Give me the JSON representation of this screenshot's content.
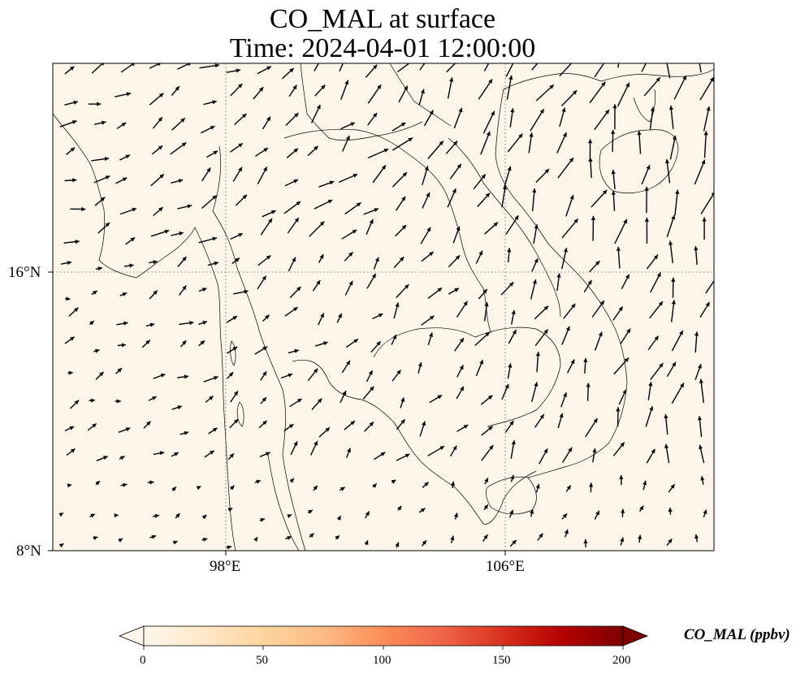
{
  "title": {
    "line1": "CO_MAL at surface",
    "line2": "Time: 2024-04-01 12:00:00"
  },
  "axes": {
    "x_ticks": [
      "98°E",
      "106°E"
    ],
    "y_ticks": [
      "16°N",
      "8°N"
    ]
  },
  "colorbar": {
    "label": "CO_MAL (ppbv)",
    "ticks": [
      "0",
      "50",
      "100",
      "150",
      "200"
    ],
    "min": 0,
    "max": 200,
    "colormap": "OrRd",
    "stops": [
      "#fff7ec",
      "#fee8c8",
      "#fdd49e",
      "#fdbb84",
      "#fc8d59",
      "#ef6548",
      "#d7301f",
      "#b30000",
      "#7f0000"
    ]
  },
  "map": {
    "fill_color": "#fdf5e9",
    "projection": "PlateCarree",
    "lon_range": [
      93,
      112
    ],
    "lat_range": [
      8,
      22
    ],
    "wind_vectors": "shown"
  }
}
